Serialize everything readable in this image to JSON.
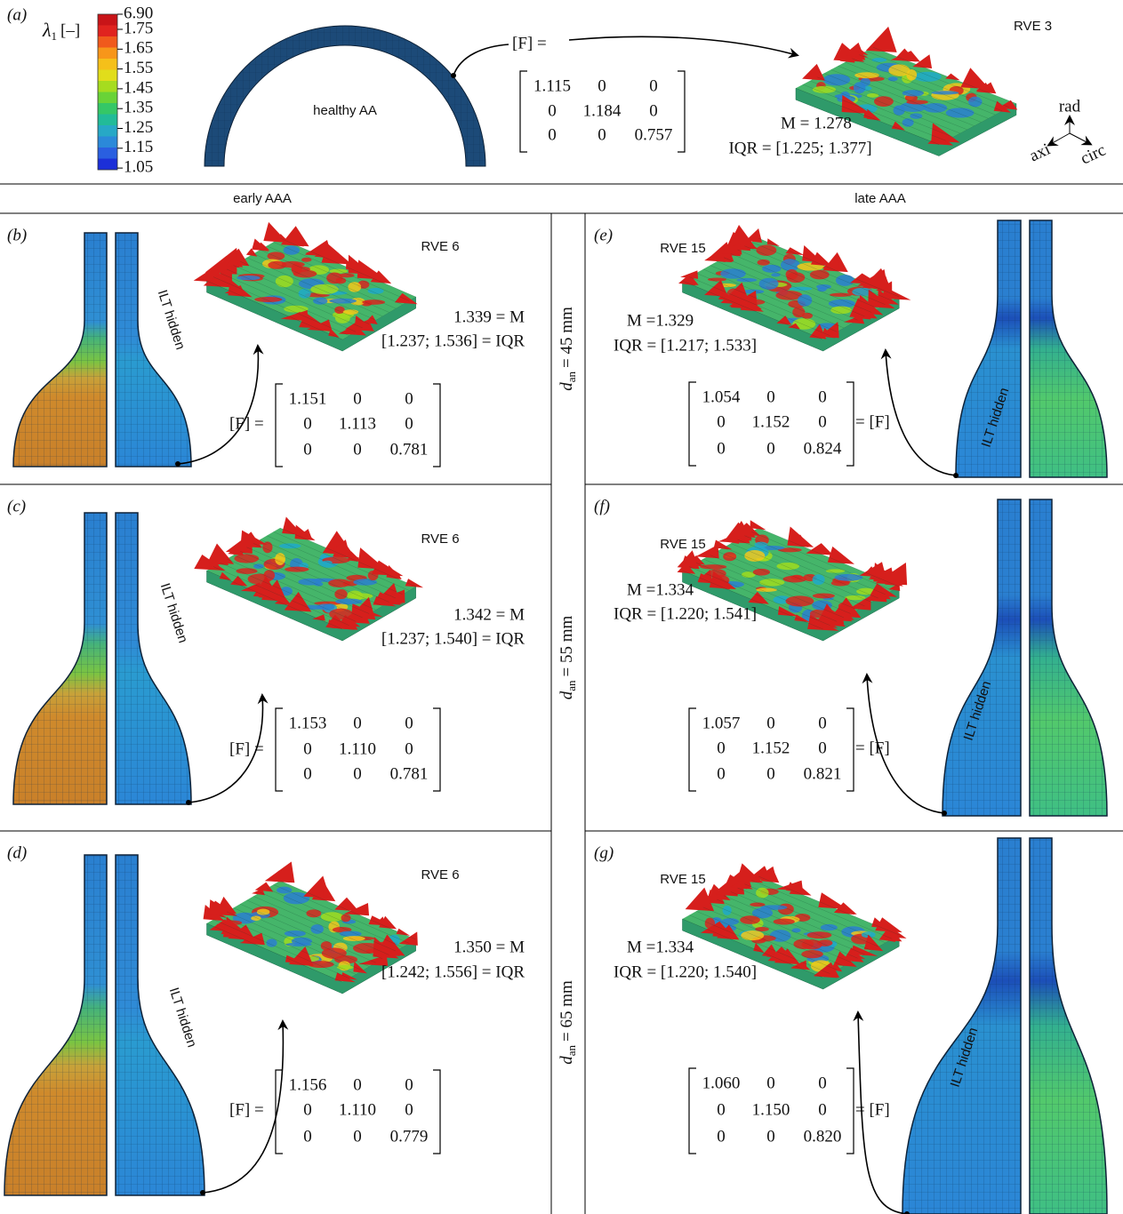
{
  "panel_a": {
    "label": "(a)",
    "colorbar": {
      "symbol": "λ",
      "subscript": "1",
      "unit": "[–]",
      "ticks": [
        "6.90",
        "1.75",
        "1.65",
        "1.55",
        "1.45",
        "1.35",
        "1.25",
        "1.15",
        "1.05"
      ]
    },
    "vessel_label": "healthy AA",
    "rve_label": "RVE 3",
    "f_label": "[F] =",
    "matrix": [
      [
        "1.115",
        "0",
        "0"
      ],
      [
        "0",
        "1.184",
        "0"
      ],
      [
        "0",
        "0",
        "0.757"
      ]
    ],
    "median": "M = 1.278",
    "iqr": "IQR = [1.225; 1.377]",
    "axes": {
      "radial": "rad",
      "axial": "axi",
      "circumferential": "circ"
    }
  },
  "columns": {
    "left": "early AAA",
    "right": "late AAA"
  },
  "rows": [
    {
      "diameter": {
        "symbol": "d",
        "subscript": "an",
        "text": "= 45 mm"
      },
      "early": {
        "label": "(b)",
        "rve_label": "RVE 6",
        "median": "1.339 = M",
        "iqr": "[1.237; 1.536] = IQR",
        "f_label": "[F] =",
        "matrix": [
          [
            "1.151",
            "0",
            "0"
          ],
          [
            "0",
            "1.113",
            "0"
          ],
          [
            "0",
            "0",
            "0.781"
          ]
        ],
        "hidden_label": "ILT hidden"
      },
      "late": {
        "label": "(e)",
        "rve_label": "RVE 15",
        "median": "M =1.329",
        "iqr": "IQR = [1.217; 1.533]",
        "f_label": "= [F]",
        "matrix": [
          [
            "1.054",
            "0",
            "0"
          ],
          [
            "0",
            "1.152",
            "0"
          ],
          [
            "0",
            "0",
            "0.824"
          ]
        ],
        "hidden_label": "ILT hidden"
      }
    },
    {
      "diameter": {
        "symbol": "d",
        "subscript": "an",
        "text": "= 55 mm"
      },
      "early": {
        "label": "(c)",
        "rve_label": "RVE 6",
        "median": "1.342 = M",
        "iqr": "[1.237; 1.540] = IQR",
        "f_label": "[F] =",
        "matrix": [
          [
            "1.153",
            "0",
            "0"
          ],
          [
            "0",
            "1.110",
            "0"
          ],
          [
            "0",
            "0",
            "0.781"
          ]
        ],
        "hidden_label": "ILT hidden"
      },
      "late": {
        "label": "(f)",
        "rve_label": "RVE 15",
        "median": "M =1.334",
        "iqr": "IQR = [1.220; 1.541]",
        "f_label": "= [F]",
        "matrix": [
          [
            "1.057",
            "0",
            "0"
          ],
          [
            "0",
            "1.152",
            "0"
          ],
          [
            "0",
            "0",
            "0.821"
          ]
        ],
        "hidden_label": "ILT hidden"
      }
    },
    {
      "diameter": {
        "symbol": "d",
        "subscript": "an",
        "text": "= 65 mm"
      },
      "early": {
        "label": "(d)",
        "rve_label": "RVE 6",
        "median": "1.350 = M",
        "iqr": "[1.242; 1.556] = IQR",
        "f_label": "[F] =",
        "matrix": [
          [
            "1.156",
            "0",
            "0"
          ],
          [
            "0",
            "1.110",
            "0"
          ],
          [
            "0",
            "0",
            "0.779"
          ]
        ],
        "hidden_label": "ILT hidden"
      },
      "late": {
        "label": "(g)",
        "rve_label": "RVE 15",
        "median": "M =1.334",
        "iqr": "IQR = [1.220; 1.540]",
        "f_label": "= [F]",
        "matrix": [
          [
            "1.060",
            "0",
            "0"
          ],
          [
            "0",
            "1.150",
            "0"
          ],
          [
            "0",
            "0",
            "0.820"
          ]
        ],
        "hidden_label": "ILT hidden"
      }
    }
  ]
}
